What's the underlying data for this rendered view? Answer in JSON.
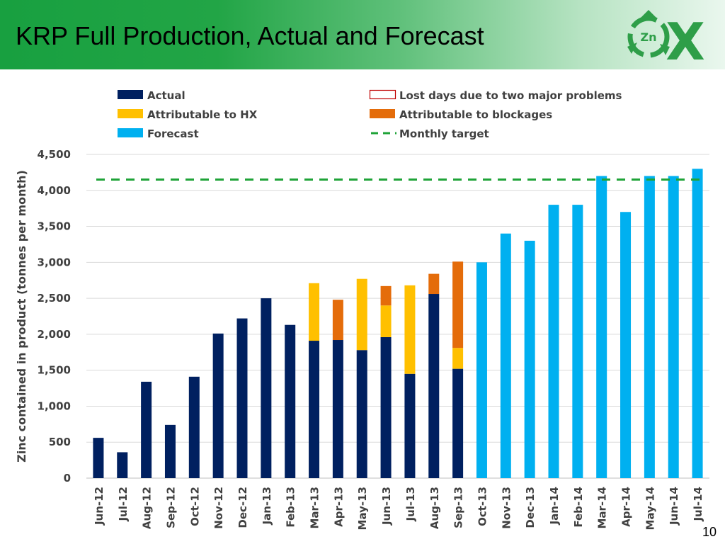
{
  "slide": {
    "title": "KRP Full Production, Actual and Forecast",
    "page_number": "10",
    "logo_text": "Zn",
    "logo_letter": "X"
  },
  "colors": {
    "actual": "#002060",
    "hx": "#FFC000",
    "blockages": "#E46C0A",
    "forecast": "#00B0F0",
    "target": "#1FA338",
    "lost_days_border": "#C00000",
    "grid": "#D9D9D9",
    "logo": "#2E9E48"
  },
  "chart_data": {
    "type": "bar",
    "stacked": true,
    "title": "",
    "xlabel": "",
    "ylabel": "Zinc contained in product (tonnes per month)",
    "ylim": [
      0,
      4500
    ],
    "yticks": [
      0,
      500,
      1000,
      1500,
      2000,
      2500,
      3000,
      3500,
      4000,
      4500
    ],
    "ytick_labels": [
      "0",
      "500",
      "1,000",
      "1,500",
      "2,000",
      "2,500",
      "3,000",
      "3,500",
      "4,000",
      "4,500"
    ],
    "grid": true,
    "legend_position": "top",
    "categories": [
      "Jun-12",
      "Jul-12",
      "Aug-12",
      "Sep-12",
      "Oct-12",
      "Nov-12",
      "Dec-12",
      "Jan-13",
      "Feb-13",
      "Mar-13",
      "Apr-13",
      "May-13",
      "Jun-13",
      "Jul-13",
      "Aug-13",
      "Sep-13",
      "Oct-13",
      "Nov-13",
      "Dec-13",
      "Jan-14",
      "Feb-14",
      "Mar-14",
      "Apr-14",
      "May-14",
      "Jun-14",
      "Jul-14"
    ],
    "series": [
      {
        "name": "Actual",
        "key": "actual",
        "values": [
          560,
          360,
          1340,
          740,
          1410,
          2010,
          2220,
          2500,
          2130,
          1910,
          1920,
          1780,
          1960,
          1450,
          2560,
          1520,
          0,
          0,
          0,
          0,
          0,
          0,
          0,
          0,
          0,
          0
        ]
      },
      {
        "name": "Attributable to HX",
        "key": "hx",
        "values": [
          0,
          0,
          0,
          0,
          0,
          0,
          0,
          0,
          0,
          800,
          0,
          990,
          440,
          1230,
          0,
          290,
          0,
          0,
          0,
          0,
          0,
          0,
          0,
          0,
          0,
          0
        ]
      },
      {
        "name": "Attributable to blockages",
        "key": "blockages",
        "values": [
          0,
          0,
          0,
          0,
          0,
          0,
          0,
          0,
          0,
          0,
          560,
          0,
          270,
          0,
          280,
          1200,
          0,
          0,
          0,
          0,
          0,
          0,
          0,
          0,
          0,
          0
        ]
      },
      {
        "name": "Forecast",
        "key": "forecast",
        "values": [
          0,
          0,
          0,
          0,
          0,
          0,
          0,
          0,
          0,
          0,
          0,
          0,
          0,
          0,
          0,
          0,
          3000,
          3400,
          3300,
          3800,
          3800,
          4200,
          3700,
          4200,
          4200,
          4300
        ]
      }
    ],
    "legend": [
      {
        "name": "Actual",
        "key": "actual",
        "kind": "box"
      },
      {
        "name": "Lost days due to two major problems",
        "key": "lost_days",
        "kind": "outline"
      },
      {
        "name": "Attributable to HX",
        "key": "hx",
        "kind": "box"
      },
      {
        "name": "Attributable to blockages",
        "key": "blockages",
        "kind": "box"
      },
      {
        "name": "Forecast",
        "key": "forecast",
        "kind": "box"
      },
      {
        "name": "Monthly target",
        "key": "target",
        "kind": "dashed"
      }
    ],
    "target": {
      "name": "Monthly target",
      "value": 4150
    }
  }
}
